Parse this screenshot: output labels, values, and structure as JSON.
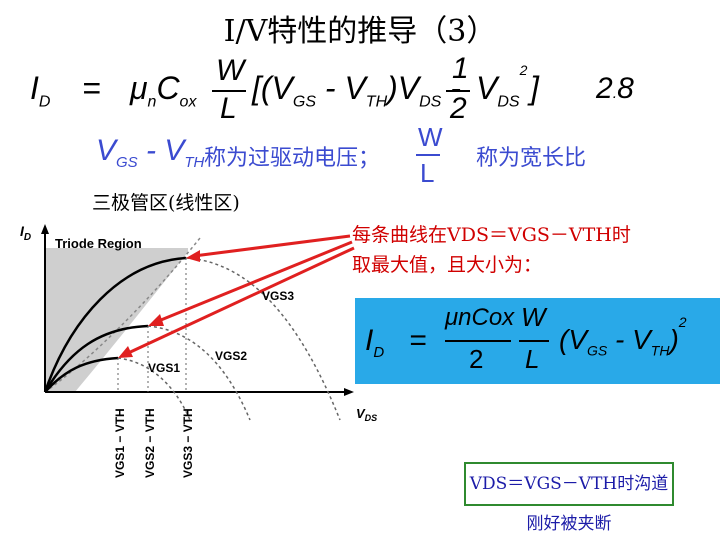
{
  "title": "I/V特性的推导（3）",
  "main_equation": {
    "lhs": "I",
    "lhs_sub": "D",
    "eq": "=",
    "mu": "μ",
    "mu_sub": "n",
    "c": "C",
    "c_sub": "ox",
    "frac_num": "W",
    "frac_den": "L",
    "bracket_open": "[(V",
    "vgs_sub": "GS",
    "minus1": "- V",
    "vth_sub": "TH",
    "close_vds": ")V",
    "vds_sub": "DS",
    "minus2": "-",
    "half_num": "1",
    "half_den": "2",
    "v2": "V",
    "v2_sub": "DS",
    "v2_sup": "2",
    "bracket_close": "]",
    "number_a": "2",
    "number_b": "8",
    "number_dot": "."
  },
  "overdrive_line": {
    "v": "V",
    "gs_sub": "GS",
    "minus": "- V",
    "th_sub": "TH",
    "overdrive_text": "称为过驱动电压；",
    "w": "W",
    "l": "L",
    "ratio_text": "称为宽长比"
  },
  "region_label": "三极管区(线性区)",
  "note": {
    "line1": "每条曲线在VDS＝VGS－VTH时",
    "line2": "取最大值，且大小为："
  },
  "max_formula": {
    "lhs": "I",
    "lhs_sub": "D",
    "eq": "=",
    "num": "μnCox",
    "den": "2",
    "frac_num": "W",
    "frac_den": "L",
    "body": "(V",
    "gs_sub": "GS",
    "minus": "- V",
    "th_sub": "TH",
    "close": ")",
    "sup": "2"
  },
  "graph": {
    "y_label": "I",
    "y_sub": "D",
    "region_title": "Triode Region",
    "curve_labels": [
      "VGS3",
      "VGS2",
      "VGS1"
    ],
    "x_label": "V",
    "x_sub": "DS",
    "tick_labels": [
      "VGS1 − VTH",
      "VGS2 − VTH",
      "VGS3 − VTH"
    ]
  },
  "bottom_note": "VDS＝VGS－VTH时沟道刚好被夹断",
  "colors": {
    "arrow": "#e02020",
    "formula_bg": "#29a9e8",
    "box_border": "#2f8a2f",
    "blue_text": "#3b4bd0"
  }
}
